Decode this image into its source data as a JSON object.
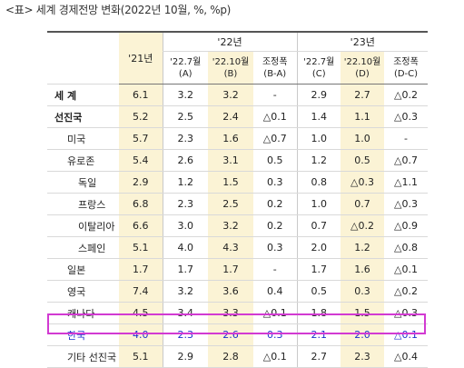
{
  "caption": "<표> 세계 경제전망 변화(2022년 10월, %, %p)",
  "headers": {
    "y21": "'21년",
    "y22": "'22년",
    "y23": "'23년",
    "sub": [
      "'22.7월\n(A)",
      "'22.10월\n(B)",
      "조정폭\n(B-A)",
      "'22.7월\n(C)",
      "'22.10월\n(D)",
      "조정폭\n(D-C)"
    ]
  },
  "rows": [
    {
      "label": "세 계",
      "v": [
        "6.1",
        "3.2",
        "3.2",
        "-",
        "2.9",
        "2.7",
        "△0.2"
      ]
    },
    {
      "label": "선진국",
      "v": [
        "5.2",
        "2.5",
        "2.4",
        "△0.1",
        "1.4",
        "1.1",
        "△0.3"
      ]
    },
    {
      "label": "미국",
      "v": [
        "5.7",
        "2.3",
        "1.6",
        "△0.7",
        "1.0",
        "1.0",
        "-"
      ]
    },
    {
      "label": "유로존",
      "v": [
        "5.4",
        "2.6",
        "3.1",
        "0.5",
        "1.2",
        "0.5",
        "△0.7"
      ]
    },
    {
      "label": "독일",
      "v": [
        "2.9",
        "1.2",
        "1.5",
        "0.3",
        "0.8",
        "△0.3",
        "△1.1"
      ]
    },
    {
      "label": "프랑스",
      "v": [
        "6.8",
        "2.3",
        "2.5",
        "0.2",
        "1.0",
        "0.7",
        "△0.3"
      ]
    },
    {
      "label": "이탈리아",
      "v": [
        "6.6",
        "3.0",
        "3.2",
        "0.2",
        "0.7",
        "△0.2",
        "△0.9"
      ]
    },
    {
      "label": "스페인",
      "v": [
        "5.1",
        "4.0",
        "4.3",
        "0.3",
        "2.0",
        "1.2",
        "△0.8"
      ]
    },
    {
      "label": "일본",
      "v": [
        "1.7",
        "1.7",
        "1.7",
        "-",
        "1.7",
        "1.6",
        "△0.1"
      ]
    },
    {
      "label": "영국",
      "v": [
        "7.4",
        "3.2",
        "3.6",
        "0.4",
        "0.5",
        "0.3",
        "△0.2"
      ]
    },
    {
      "label": "캐나다",
      "v": [
        "4.5",
        "3.4",
        "3.3",
        "△0.1",
        "1.8",
        "1.5",
        "△0.3"
      ]
    },
    {
      "label": "한국",
      "v": [
        "4.0",
        "2.3",
        "2.6",
        "0.3",
        "2.1",
        "2.0",
        "△0.1"
      ]
    },
    {
      "label": "기타 선진국",
      "v": [
        "5.1",
        "2.9",
        "2.8",
        "△0.1",
        "2.7",
        "2.3",
        "△0.4"
      ]
    }
  ]
}
